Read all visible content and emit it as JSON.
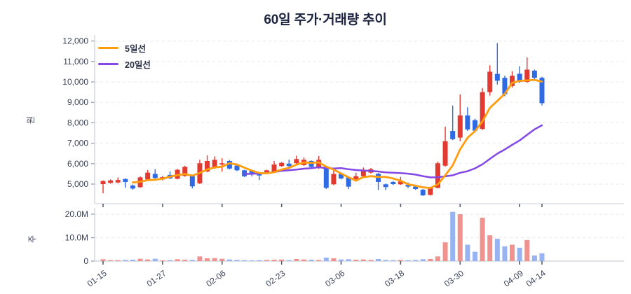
{
  "title": "60일 주가·거래량 추이",
  "price_panel": {
    "unit_label": "원"
  },
  "volume_panel": {
    "unit_label": "주"
  },
  "legend": {
    "items": [
      {
        "label": "5일선",
        "color": "#ff9d0e"
      },
      {
        "label": "20일선",
        "color": "#8247e5"
      }
    ]
  },
  "chart_data": {
    "type": "candlestick",
    "title": "60일 주가·거래량 추이",
    "legend_position": "top-left-inside",
    "grid": true,
    "price_axis": {
      "unit": "원",
      "ticks": [
        5000,
        6000,
        7000,
        8000,
        9000,
        10000,
        11000,
        12000
      ],
      "ylim": [
        4400,
        12200
      ]
    },
    "volume_axis": {
      "unit": "주",
      "ticks_millions": [
        0,
        10,
        20
      ],
      "ylim_millions": [
        0,
        22
      ]
    },
    "x_ticks": [
      {
        "index": 0,
        "label": "01-15"
      },
      {
        "index": 8,
        "label": "01-27"
      },
      {
        "index": 16,
        "label": "02-06"
      },
      {
        "index": 24,
        "label": "02-23"
      },
      {
        "index": 32,
        "label": "03-06"
      },
      {
        "index": 40,
        "label": "03-18"
      },
      {
        "index": 48,
        "label": "03-30"
      },
      {
        "index": 56,
        "label": "04-09"
      },
      {
        "index": 59,
        "label": "04-14"
      }
    ],
    "moving_averages": [
      {
        "name": "5일선",
        "window": 5,
        "color": "#ff9d0e"
      },
      {
        "name": "20일선",
        "window": 20,
        "color": "#8247e5"
      }
    ],
    "colors": {
      "up": "#e23a31",
      "down": "#2d6ae3",
      "volume_up": "#f0938f",
      "volume_down": "#97b3f2",
      "grid": "#ebecf2",
      "axis": "#c9cdd8",
      "tick_text": "#3d4459"
    },
    "candles_ohlc": [
      [
        5000,
        5180,
        4550,
        5150
      ],
      [
        5060,
        5230,
        5020,
        5180
      ],
      [
        5080,
        5320,
        5040,
        5200
      ],
      [
        5250,
        5280,
        4830,
        5100
      ],
      [
        4930,
        4980,
        4730,
        4780
      ],
      [
        4850,
        5380,
        4820,
        5330
      ],
      [
        5230,
        5690,
        5200,
        5560
      ],
      [
        5500,
        5730,
        5260,
        5300
      ],
      [
        5230,
        5400,
        5180,
        5340
      ],
      [
        5450,
        5615,
        5250,
        5280
      ],
      [
        5260,
        5750,
        5230,
        5700
      ],
      [
        5400,
        5900,
        5360,
        5845
      ],
      [
        5390,
        5430,
        4790,
        4890
      ],
      [
        5040,
        6190,
        5000,
        6020
      ],
      [
        5615,
        6415,
        5580,
        6130
      ],
      [
        5790,
        6360,
        5750,
        6190
      ],
      [
        5960,
        6260,
        5615,
        6020
      ],
      [
        6130,
        6180,
        5720,
        5760
      ],
      [
        5905,
        5940,
        5640,
        5675
      ],
      [
        5675,
        5700,
        5340,
        5385
      ],
      [
        5675,
        5700,
        5380,
        5470
      ],
      [
        5560,
        5580,
        5200,
        5420
      ],
      [
        5560,
        5700,
        5520,
        5675
      ],
      [
        5615,
        6130,
        5600,
        5960
      ],
      [
        5880,
        6080,
        5845,
        6040
      ],
      [
        6000,
        6195,
        5730,
        5880
      ],
      [
        6020,
        6390,
        5990,
        6225
      ],
      [
        5930,
        6310,
        5900,
        6190
      ],
      [
        6130,
        6160,
        5800,
        5845
      ],
      [
        5790,
        6370,
        5750,
        6190
      ],
      [
        5845,
        5880,
        4760,
        4815
      ],
      [
        4990,
        5675,
        4950,
        5500
      ],
      [
        5500,
        5540,
        5230,
        5275
      ],
      [
        5330,
        5360,
        4760,
        4875
      ],
      [
        5160,
        5560,
        5120,
        5385
      ],
      [
        5385,
        5810,
        5350,
        5675
      ],
      [
        5560,
        5790,
        5520,
        5730
      ],
      [
        5505,
        5540,
        4705,
        5105
      ],
      [
        4990,
        5030,
        4705,
        4855
      ],
      [
        5105,
        5150,
        4960,
        5000
      ],
      [
        4990,
        5355,
        4960,
        5130
      ],
      [
        4965,
        5080,
        4800,
        4880
      ],
      [
        4875,
        4910,
        4720,
        4760
      ],
      [
        4725,
        4760,
        4420,
        4450
      ],
      [
        4470,
        4860,
        4440,
        4815
      ],
      [
        4815,
        6100,
        4800,
        6020
      ],
      [
        5900,
        7810,
        5850,
        7100
      ],
      [
        7600,
        8845,
        7150,
        7200
      ],
      [
        7275,
        9385,
        7100,
        8360
      ],
      [
        8360,
        8760,
        7600,
        7675
      ],
      [
        8130,
        8200,
        7550,
        7615
      ],
      [
        7700,
        9700,
        7650,
        9500
      ],
      [
        9500,
        10810,
        9330,
        10500
      ],
      [
        10390,
        11900,
        9870,
        10060
      ],
      [
        10200,
        10300,
        9300,
        9400
      ],
      [
        9800,
        10520,
        9720,
        10300
      ],
      [
        10400,
        10770,
        9950,
        10000
      ],
      [
        10000,
        11200,
        9950,
        10600
      ],
      [
        10550,
        10600,
        10100,
        10200
      ],
      [
        10200,
        10250,
        8850,
        8960
      ]
    ],
    "volumes_millions": [
      0.8,
      0.4,
      0.4,
      0.5,
      0.6,
      1.0,
      0.7,
      1.0,
      0.3,
      0.4,
      0.8,
      0.6,
      0.5,
      2.0,
      1.2,
      1.3,
      1.0,
      0.7,
      0.5,
      0.4,
      0.3,
      0.4,
      0.5,
      0.6,
      0.7,
      0.4,
      0.9,
      0.7,
      0.6,
      0.5,
      1.5,
      1.2,
      0.7,
      0.8,
      0.6,
      0.7,
      0.5,
      0.9,
      0.5,
      0.4,
      0.5,
      0.4,
      0.5,
      0.8,
      0.9,
      2.0,
      8.0,
      21.0,
      20.0,
      7.0,
      4.0,
      18.5,
      11.0,
      9.5,
      6.3,
      7.0,
      5.7,
      9.0,
      2.4,
      3.3
    ]
  }
}
